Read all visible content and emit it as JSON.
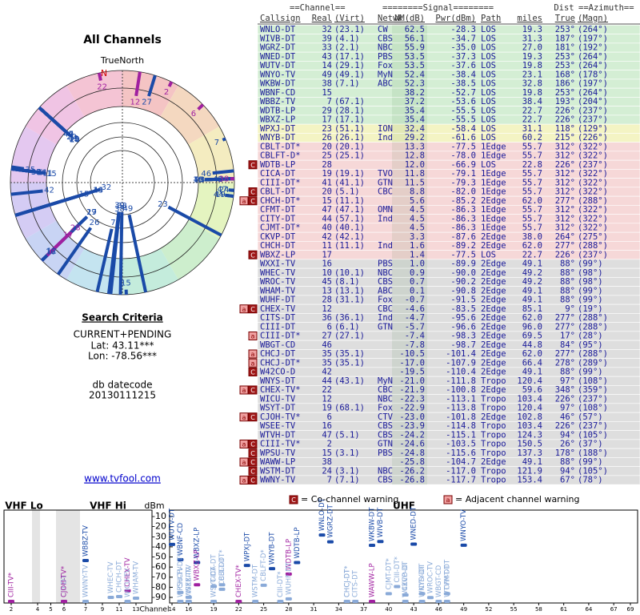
{
  "left": {
    "title": "All Channels",
    "north_label": "TrueNorth",
    "north": "N",
    "criteria_title": "Search Criteria",
    "criteria": [
      "CURRENT+PENDING",
      "Lat: 43.11***",
      "Lon: -78.56***"
    ],
    "datecode_label": "db datecode",
    "datecode": "20130111215",
    "link": "www.tvfool.com"
  },
  "table": {
    "group_headers": [
      "==Channel==",
      "========Signal========",
      "Dist",
      "==Azimuth=="
    ],
    "headers": [
      "Callsign",
      "Real",
      "(Virt)",
      "Netwk",
      "NM(dB)",
      "Pwr(dBm)",
      "Path",
      "miles",
      "True",
      "(Magn)"
    ],
    "rows": [
      {
        "c": [
          "WNLO-DT",
          "32",
          "(23.1)",
          "CW",
          "62.5",
          "-28.3",
          "LOS",
          "19.3",
          "253°",
          "(264°)"
        ],
        "bg": "#d4eed4"
      },
      {
        "c": [
          "WIVB-DT",
          "39",
          "(4.1)",
          "CBS",
          "56.1",
          "-34.7",
          "LOS",
          "31.3",
          "187°",
          "(197°)"
        ],
        "bg": "#d4eed4"
      },
      {
        "c": [
          "WGRZ-DT",
          "33",
          "(2.1)",
          "NBC",
          "55.9",
          "-35.0",
          "LOS",
          "27.0",
          "181°",
          "(192°)"
        ],
        "bg": "#d4eed4"
      },
      {
        "c": [
          "WNED-DT",
          "43",
          "(17.1)",
          "PBS",
          "53.5",
          "-37.3",
          "LOS",
          "19.3",
          "253°",
          "(264°)"
        ],
        "bg": "#d4eed4"
      },
      {
        "c": [
          "WUTV-DT",
          "14",
          "(29.1)",
          "Fox",
          "53.5",
          "-37.6",
          "LOS",
          "19.8",
          "253°",
          "(264°)"
        ],
        "bg": "#d4eed4"
      },
      {
        "c": [
          "WNYO-TV",
          "49",
          "(49.1)",
          "MyN",
          "52.4",
          "-38.4",
          "LOS",
          "23.1",
          "168°",
          "(178°)"
        ],
        "bg": "#d4eed4"
      },
      {
        "c": [
          "WKBW-DT",
          "38",
          "(7.1)",
          "ABC",
          "52.3",
          "-38.5",
          "LOS",
          "32.8",
          "186°",
          "(197°)"
        ],
        "bg": "#d4eed4"
      },
      {
        "c": [
          "WBNF-CD",
          "15",
          null,
          null,
          "38.2",
          "-52.7",
          "LOS",
          "19.8",
          "253°",
          "(264°)"
        ],
        "bg": "#d4eed4"
      },
      {
        "c": [
          "WBBZ-TV",
          "7",
          "(67.1)",
          null,
          "37.2",
          "-53.6",
          "LOS",
          "38.4",
          "193°",
          "(204°)"
        ],
        "bg": "#d4eed4"
      },
      {
        "c": [
          "WDTB-LP",
          "29",
          "(28.1)",
          null,
          "35.4",
          "-55.5",
          "LOS",
          "22.7",
          "226°",
          "(237°)"
        ],
        "bg": "#d4eed4"
      },
      {
        "c": [
          "WBXZ-LP",
          "17",
          "(17.1)",
          null,
          "35.4",
          "-55.5",
          "LOS",
          "22.7",
          "226°",
          "(237°)"
        ],
        "bg": "#d4eed4"
      },
      {
        "c": [
          "WPXJ-DT",
          "23",
          "(51.1)",
          "ION",
          "32.4",
          "-58.4",
          "LOS",
          "31.1",
          "118°",
          "(129°)"
        ],
        "bg": "#f4f4c4"
      },
      {
        "c": [
          "WNYB-DT",
          "26",
          "(26.1)",
          "Ind",
          "29.2",
          "-61.6",
          "LOS",
          "60.2",
          "215°",
          "(226°)"
        ],
        "bg": "#f4f4c4"
      },
      {
        "c": [
          "CBLT-DT*",
          "20",
          "(20.1)",
          null,
          "13.3",
          "-77.5",
          "1Edge",
          "55.7",
          "312°",
          "(322°)"
        ],
        "bg": "#f6d8d8"
      },
      {
        "c": [
          "CBLFT-D*",
          "25",
          "(25.1)",
          null,
          "12.8",
          "-78.0",
          "1Edge",
          "55.7",
          "312°",
          "(322°)"
        ],
        "bg": "#f6d8d8"
      },
      {
        "c": [
          "WDTB-LP",
          "28",
          null,
          null,
          "12.0",
          "-66.9",
          "LOS",
          "22.8",
          "226°",
          "(237°)"
        ],
        "bg": "#f6d8d8",
        "w": [
          "C"
        ],
        "color": "#a020a0"
      },
      {
        "c": [
          "CICA-DT",
          "19",
          "(19.1)",
          "TVO",
          "11.8",
          "-79.1",
          "1Edge",
          "55.7",
          "312°",
          "(322°)"
        ],
        "bg": "#f6d8d8"
      },
      {
        "c": [
          "CIII-DT*",
          "41",
          "(41.1)",
          "GTN",
          "11.5",
          "-79.3",
          "1Edge",
          "55.7",
          "312°",
          "(322°)"
        ],
        "bg": "#f6d8d8"
      },
      {
        "c": [
          "CBLT-DT",
          "20",
          "(5.1)",
          "CBC",
          "8.8",
          "-82.0",
          "1Edge",
          "55.7",
          "312°",
          "(322°)"
        ],
        "bg": "#f6d8d8",
        "w": [
          "C"
        ]
      },
      {
        "c": [
          "CHCH-DT*",
          "15",
          "(11.1)",
          null,
          "5.6",
          "-85.2",
          "2Edge",
          "62.0",
          "277°",
          "(288°)"
        ],
        "bg": "#f6d8d8",
        "w": [
          "a",
          "C"
        ]
      },
      {
        "c": [
          "CFMT-DT",
          "47",
          "(47.1)",
          "OMN",
          "4.5",
          "-86.3",
          "1Edge",
          "55.7",
          "312°",
          "(322°)"
        ],
        "bg": "#f6d8d8"
      },
      {
        "c": [
          "CITY-DT",
          "44",
          "(57.1)",
          "Ind",
          "4.5",
          "-86.3",
          "1Edge",
          "55.7",
          "312°",
          "(322°)"
        ],
        "bg": "#f6d8d8"
      },
      {
        "c": [
          "CJMT-DT*",
          "40",
          "(40.1)",
          null,
          "4.5",
          "-86.3",
          "1Edge",
          "55.7",
          "312°",
          "(322°)"
        ],
        "bg": "#f6d8d8"
      },
      {
        "c": [
          "CKVP-DT",
          "42",
          "(42.1)",
          null,
          "3.3",
          "-87.6",
          "2Edge",
          "38.0",
          "264°",
          "(275°)"
        ],
        "bg": "#f6d8d8"
      },
      {
        "c": [
          "CHCH-DT",
          "11",
          "(11.1)",
          "Ind",
          "1.6",
          "-89.2",
          "2Edge",
          "62.0",
          "277°",
          "(288°)"
        ],
        "bg": "#f6d8d8"
      },
      {
        "c": [
          "WBXZ-LP",
          "17",
          null,
          null,
          "1.4",
          "-77.5",
          "LOS",
          "22.7",
          "226°",
          "(237°)"
        ],
        "bg": "#f6d8d8",
        "w": [
          "C"
        ],
        "color": "#a020a0"
      },
      {
        "c": [
          "WXXI-TV",
          "16",
          null,
          "PBS",
          "1.0",
          "-89.9",
          "2Edge",
          "49.1",
          "88°",
          "(99°)"
        ],
        "bg": "#dedede"
      },
      {
        "c": [
          "WHEC-TV",
          "10",
          "(10.1)",
          "NBC",
          "0.9",
          "-90.0",
          "2Edge",
          "49.2",
          "88°",
          "(98°)"
        ],
        "bg": "#dedede"
      },
      {
        "c": [
          "WROC-TV",
          "45",
          "(8.1)",
          "CBS",
          "0.7",
          "-90.2",
          "2Edge",
          "49.2",
          "88°",
          "(98°)"
        ],
        "bg": "#dedede"
      },
      {
        "c": [
          "WHAM-TV",
          "13",
          "(13.1)",
          "ABC",
          "0.1",
          "-90.8",
          "2Edge",
          "49.1",
          "88°",
          "(99°)"
        ],
        "bg": "#dedede"
      },
      {
        "c": [
          "WUHF-DT",
          "28",
          "(31.1)",
          "Fox",
          "-0.7",
          "-91.5",
          "2Edge",
          "49.1",
          "88°",
          "(99°)"
        ],
        "bg": "#dedede"
      },
      {
        "c": [
          "CHEX-TV",
          "12",
          null,
          "CBC",
          "-4.6",
          "-83.5",
          "2Edge",
          "85.1",
          "9°",
          "(19°)"
        ],
        "bg": "#dedede",
        "w": [
          "a",
          "C"
        ],
        "color": "#a020a0"
      },
      {
        "c": [
          "CITS-DT",
          "36",
          "(36.1)",
          "Ind",
          "-4.7",
          "-95.6",
          "2Edge",
          "62.0",
          "277°",
          "(288°)"
        ],
        "bg": "#dedede"
      },
      {
        "c": [
          "CIII-DT",
          "6",
          "(6.1)",
          "GTN",
          "-5.7",
          "-96.6",
          "2Edge",
          "96.0",
          "277°",
          "(288°)"
        ],
        "bg": "#dedede"
      },
      {
        "c": [
          "CIII-DT*",
          "27",
          "(27.1)",
          null,
          "-7.4",
          "-98.3",
          "2Edge",
          "69.5",
          "17°",
          "(28°)"
        ],
        "bg": "#dedede",
        "w": [
          "a"
        ]
      },
      {
        "c": [
          "WBGT-CD",
          "46",
          null,
          null,
          "-7.8",
          "-98.7",
          "2Edge",
          "44.8",
          "84°",
          "(95°)"
        ],
        "bg": "#dedede"
      },
      {
        "c": [
          "CHCJ-DT",
          "35",
          "(35.1)",
          null,
          "-10.5",
          "-101.4",
          "2Edge",
          "62.0",
          "277°",
          "(288°)"
        ],
        "bg": "#dedede",
        "w": [
          "a"
        ]
      },
      {
        "c": [
          "CHCJ-DT*",
          "35",
          "(35.1)",
          null,
          "-17.0",
          "-107.9",
          "2Edge",
          "66.4",
          "278°",
          "(289°)"
        ],
        "bg": "#dedede",
        "w": [
          "a"
        ]
      },
      {
        "c": [
          "W42CO-D",
          "42",
          null,
          null,
          "-19.5",
          "-110.4",
          "2Edge",
          "49.1",
          "88°",
          "(99°)"
        ],
        "bg": "#dedede",
        "w": [
          "C"
        ]
      },
      {
        "c": [
          "WNYS-DT",
          "44",
          "(43.1)",
          "MyN",
          "-21.0",
          "-111.8",
          "Tropo",
          "120.4",
          "97°",
          "(108°)"
        ],
        "bg": "#dedede"
      },
      {
        "c": [
          "CHEX-TV*",
          "22",
          null,
          "CBC",
          "-21.9",
          "-100.8",
          "2Edge",
          "59.6",
          "348°",
          "(359°)"
        ],
        "bg": "#dedede",
        "w": [
          "a",
          "C"
        ],
        "color": "#a020a0"
      },
      {
        "c": [
          "WICU-TV",
          "12",
          null,
          "NBC",
          "-22.3",
          "-113.1",
          "Tropo",
          "103.4",
          "226°",
          "(237°)"
        ],
        "bg": "#dedede"
      },
      {
        "c": [
          "WSYT-DT",
          "19",
          "(68.1)",
          "Fox",
          "-22.9",
          "-113.8",
          "Tropo",
          "120.4",
          "97°",
          "(108°)"
        ],
        "bg": "#dedede"
      },
      {
        "c": [
          "CJOH-TV*",
          "6",
          null,
          "CTV",
          "-23.0",
          "-101.8",
          "2Edge",
          "102.8",
          "46°",
          "(57°)"
        ],
        "bg": "#dedede",
        "w": [
          "a",
          "C"
        ],
        "color": "#a020a0"
      },
      {
        "c": [
          "WSEE-TV",
          "16",
          null,
          "CBS",
          "-23.9",
          "-114.8",
          "Tropo",
          "103.4",
          "226°",
          "(237°)"
        ],
        "bg": "#dedede"
      },
      {
        "c": [
          "WTVH-DT",
          "47",
          "(5.1)",
          "CBS",
          "-24.2",
          "-115.1",
          "Tropo",
          "124.3",
          "94°",
          "(105°)"
        ],
        "bg": "#dedede"
      },
      {
        "c": [
          "CIII-TV*",
          "2",
          null,
          "GTN",
          "-24.6",
          "-103.5",
          "Tropo",
          "150.5",
          "26°",
          "(37°)"
        ],
        "bg": "#dedede",
        "w": [
          "a",
          "C"
        ],
        "color": "#a020a0"
      },
      {
        "c": [
          "WPSU-TV",
          "15",
          "(3.1)",
          "PBS",
          "-24.8",
          "-115.6",
          "Tropo",
          "137.3",
          "178°",
          "(188°)"
        ],
        "bg": "#dedede",
        "w": [
          "C"
        ]
      },
      {
        "c": [
          "WAWW-LP",
          "38",
          null,
          null,
          "-25.8",
          "-104.7",
          "2Edge",
          "49.1",
          "88°",
          "(99°)"
        ],
        "bg": "#dedede",
        "w": [
          "a",
          "C"
        ],
        "color": "#a020a0"
      },
      {
        "c": [
          "WSTM-DT",
          "24",
          "(3.1)",
          "NBC",
          "-26.2",
          "-117.0",
          "Tropo",
          "121.9",
          "94°",
          "(105°)"
        ],
        "bg": "#dedede",
        "w": [
          "C"
        ]
      },
      {
        "c": [
          "WWNY-TV",
          "7",
          "(7.1)",
          "CBS",
          "-26.8",
          "-117.7",
          "Tropo",
          "153.4",
          "67°",
          "(78°)"
        ],
        "bg": "#dedede",
        "w": [
          "a",
          "C"
        ]
      }
    ]
  },
  "spectrum": {
    "y_label": "dBm",
    "x_label": "Channel",
    "ylim": [
      -5,
      -95
    ],
    "yticks": [
      -10,
      -20,
      -30,
      -40,
      -50,
      -60,
      -70,
      -80,
      -90
    ],
    "bands": [
      {
        "label": "VHF Lo",
        "range": [
          2,
          6
        ],
        "ticks": [
          2,
          4,
          5,
          6
        ]
      },
      {
        "label": "VHF Hi",
        "range": [
          7,
          13
        ],
        "ticks": [
          7,
          9,
          11,
          13
        ]
      },
      {
        "label": "UHF",
        "range": [
          14,
          69
        ],
        "ticks": [
          14,
          16,
          19,
          22,
          25,
          28,
          31,
          34,
          37,
          40,
          43,
          46,
          49,
          52,
          55,
          58,
          61,
          64,
          67,
          69
        ]
      }
    ],
    "legend": [
      {
        "box": "C",
        "text": "= Co-channel warning"
      },
      {
        "box": "a",
        "text": "= Adjacent channel warning"
      }
    ]
  }
}
